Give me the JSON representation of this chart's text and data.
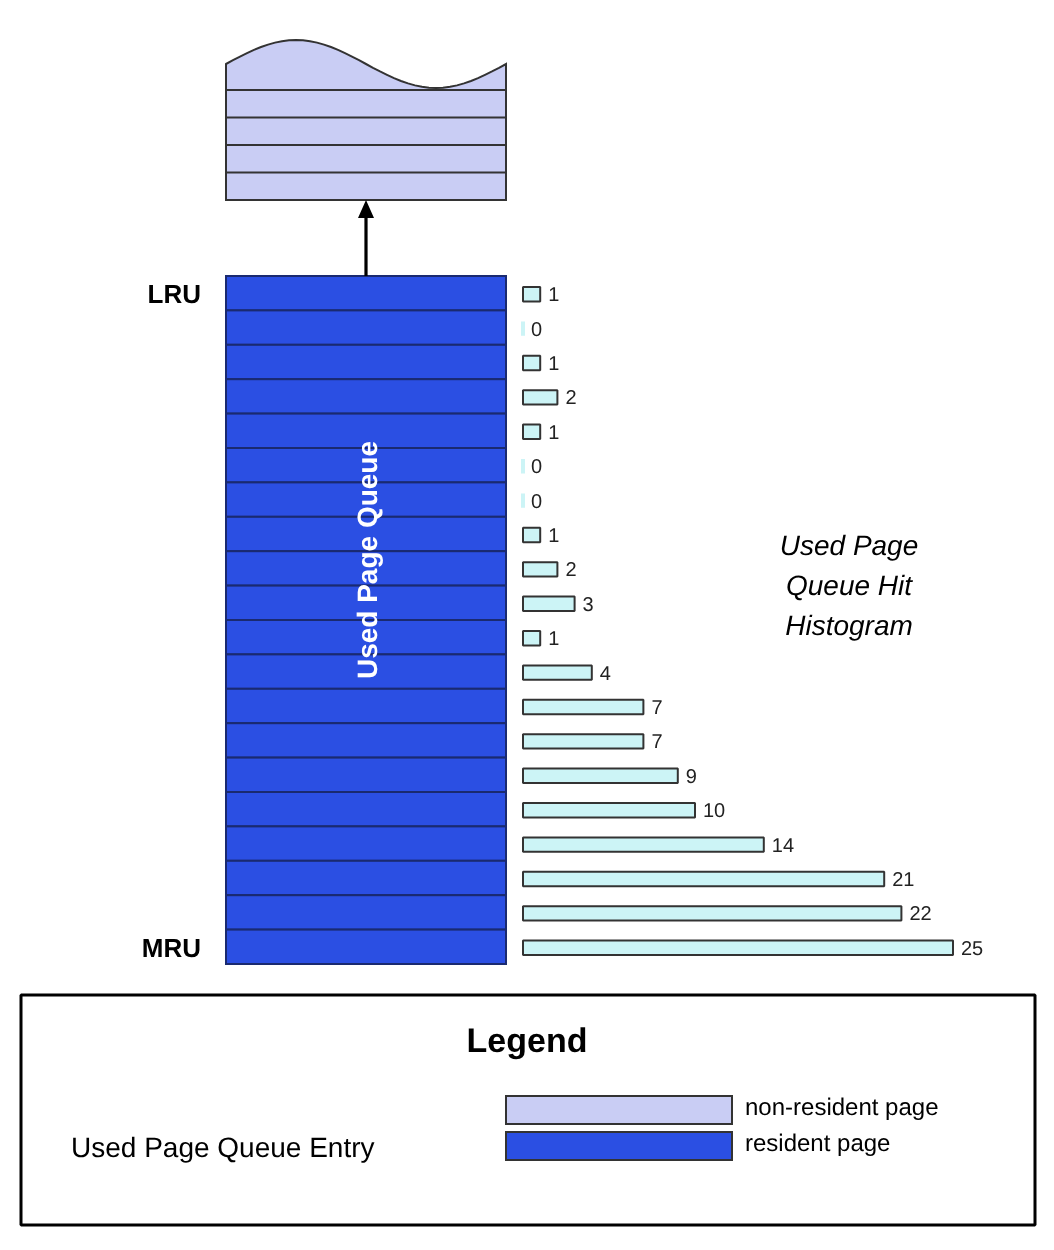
{
  "chart_data": {
    "type": "bar",
    "orientation": "horizontal",
    "title": "Used Page Queue Hit Histogram",
    "categories": [
      "LRU",
      null,
      null,
      null,
      null,
      null,
      null,
      null,
      null,
      null,
      null,
      null,
      null,
      null,
      null,
      null,
      null,
      null,
      null,
      "MRU"
    ],
    "values": [
      1,
      0,
      1,
      2,
      1,
      0,
      0,
      1,
      2,
      3,
      1,
      4,
      7,
      7,
      9,
      10,
      14,
      21,
      22,
      25
    ],
    "color": "#ccf4f6",
    "data_labels": true,
    "tick_labels": "y",
    "annotations": [
      "Used Page Queue",
      "Legend",
      "Used Page Queue Entry",
      "non-resident page",
      "resident page"
    ]
  }
}
